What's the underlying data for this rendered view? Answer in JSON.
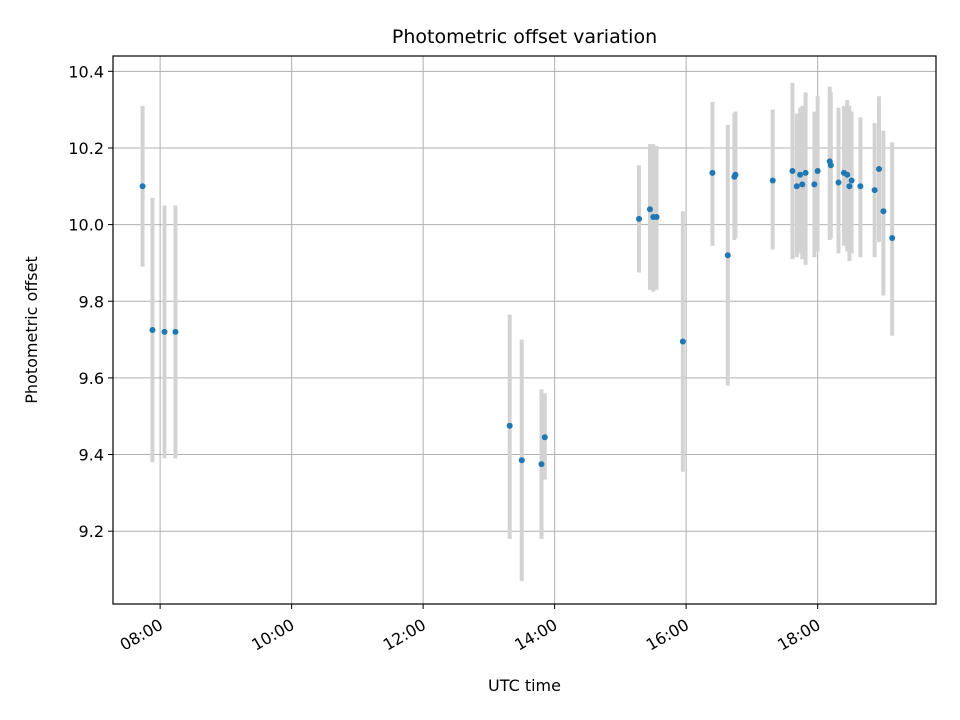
{
  "chart_data": {
    "type": "scatter",
    "title": "Photometric offset variation",
    "xlabel": "UTC time",
    "ylabel": "Photometric offset",
    "x_tick_labels": [
      "08:00",
      "10:00",
      "12:00",
      "14:00",
      "16:00",
      "18:00"
    ],
    "y_tick_labels": [
      "9.2",
      "9.4",
      "9.6",
      "9.8",
      "10.0",
      "10.2",
      "10.4"
    ],
    "xlim": [
      "07:17",
      "19:48"
    ],
    "ylim": [
      9.01,
      10.44
    ],
    "grid": true,
    "colors": {
      "point": "#1f77b4",
      "errorbar": "#d3d3d3",
      "grid": "#b0b0b0"
    },
    "series": [
      {
        "points": [
          {
            "x": "07:44",
            "y": 10.1,
            "err_low": 9.89,
            "err_high": 10.31
          },
          {
            "x": "07:53",
            "y": 9.725,
            "err_low": 9.38,
            "err_high": 10.07
          },
          {
            "x": "08:04",
            "y": 9.72,
            "err_low": 9.39,
            "err_high": 10.05
          },
          {
            "x": "08:14",
            "y": 9.72,
            "err_low": 9.39,
            "err_high": 10.05
          },
          {
            "x": "13:19",
            "y": 9.475,
            "err_low": 9.18,
            "err_high": 9.765
          },
          {
            "x": "13:30",
            "y": 9.385,
            "err_low": 9.07,
            "err_high": 9.7
          },
          {
            "x": "13:48",
            "y": 9.375,
            "err_low": 9.18,
            "err_high": 9.57
          },
          {
            "x": "13:51",
            "y": 9.445,
            "err_low": 9.335,
            "err_high": 9.56
          },
          {
            "x": "15:17",
            "y": 10.015,
            "err_low": 9.875,
            "err_high": 10.155
          },
          {
            "x": "15:27",
            "y": 10.04,
            "err_low": 9.83,
            "err_high": 10.21
          },
          {
            "x": "15:30",
            "y": 10.02,
            "err_low": 9.825,
            "err_high": 10.21
          },
          {
            "x": "15:33",
            "y": 10.02,
            "err_low": 9.83,
            "err_high": 10.205
          },
          {
            "x": "15:57",
            "y": 9.695,
            "err_low": 9.355,
            "err_high": 10.035
          },
          {
            "x": "16:24",
            "y": 10.135,
            "err_low": 9.945,
            "err_high": 10.32
          },
          {
            "x": "16:38",
            "y": 9.92,
            "err_low": 9.58,
            "err_high": 10.26
          },
          {
            "x": "16:44",
            "y": 10.125,
            "err_low": 9.96,
            "err_high": 10.29
          },
          {
            "x": "16:45",
            "y": 10.13,
            "err_low": 9.965,
            "err_high": 10.295
          },
          {
            "x": "17:19",
            "y": 10.115,
            "err_low": 9.935,
            "err_high": 10.3
          },
          {
            "x": "17:37",
            "y": 10.14,
            "err_low": 9.91,
            "err_high": 10.37
          },
          {
            "x": "17:41",
            "y": 10.1,
            "err_low": 9.915,
            "err_high": 10.29
          },
          {
            "x": "17:44",
            "y": 10.13,
            "err_low": 9.925,
            "err_high": 10.305
          },
          {
            "x": "17:46",
            "y": 10.105,
            "err_low": 9.91,
            "err_high": 10.31
          },
          {
            "x": "17:49",
            "y": 10.135,
            "err_low": 9.895,
            "err_high": 10.345
          },
          {
            "x": "17:57",
            "y": 10.105,
            "err_low": 9.915,
            "err_high": 10.295
          },
          {
            "x": "18:00",
            "y": 10.14,
            "err_low": 9.93,
            "err_high": 10.335
          },
          {
            "x": "18:11",
            "y": 10.165,
            "err_low": 9.96,
            "err_high": 10.36
          },
          {
            "x": "18:12",
            "y": 10.155,
            "err_low": 9.965,
            "err_high": 10.345
          },
          {
            "x": "18:19",
            "y": 10.11,
            "err_low": 9.925,
            "err_high": 10.305
          },
          {
            "x": "18:24",
            "y": 10.135,
            "err_low": 9.945,
            "err_high": 10.31
          },
          {
            "x": "18:27",
            "y": 10.13,
            "err_low": 9.93,
            "err_high": 10.325
          },
          {
            "x": "18:29",
            "y": 10.1,
            "err_low": 9.905,
            "err_high": 10.31
          },
          {
            "x": "18:31",
            "y": 10.115,
            "err_low": 9.925,
            "err_high": 10.295
          },
          {
            "x": "18:39",
            "y": 10.1,
            "err_low": 9.915,
            "err_high": 10.28
          },
          {
            "x": "18:52",
            "y": 10.09,
            "err_low": 9.915,
            "err_high": 10.265
          },
          {
            "x": "18:56",
            "y": 10.145,
            "err_low": 9.955,
            "err_high": 10.335
          },
          {
            "x": "19:00",
            "y": 10.035,
            "err_low": 9.815,
            "err_high": 10.245
          },
          {
            "x": "19:08",
            "y": 9.965,
            "err_low": 9.71,
            "err_high": 10.215
          }
        ]
      }
    ]
  }
}
